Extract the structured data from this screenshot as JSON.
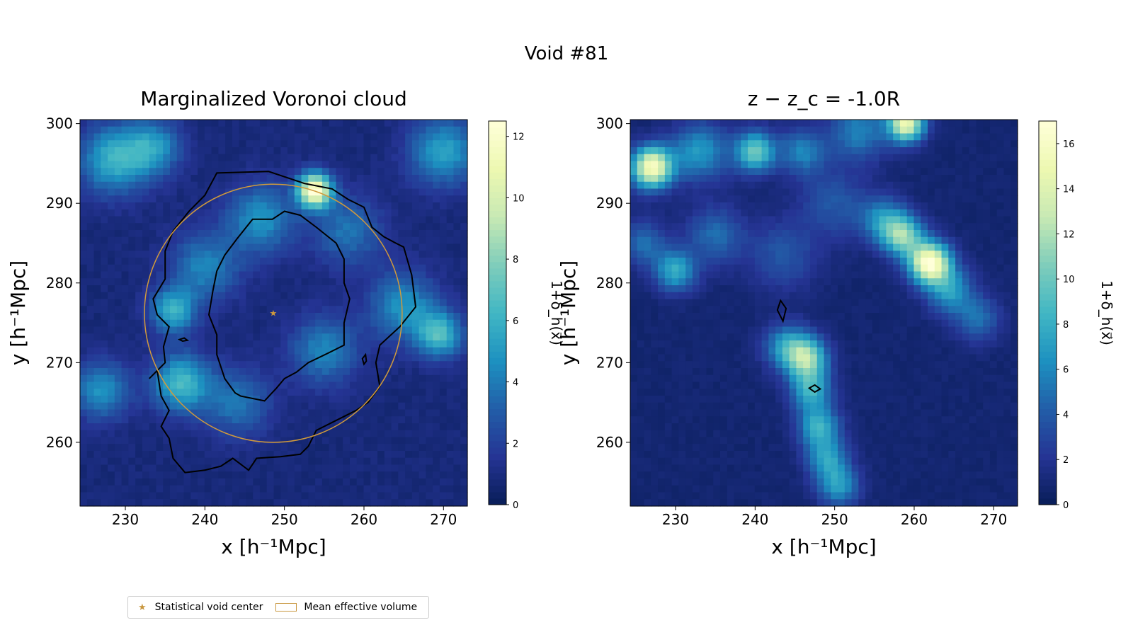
{
  "suptitle": "Void #81",
  "legend": {
    "items": [
      {
        "label": "Statistical void center",
        "marker": "star",
        "color": "#c8963e"
      },
      {
        "label": "Mean effective volume",
        "marker": "rect-outline",
        "color": "#c8963e"
      }
    ]
  },
  "colormap": "YlGnBu",
  "chart_data": [
    {
      "type": "heatmap",
      "title": "Marginalized Voronoi cloud",
      "xlabel": "x [h⁻¹Mpc]",
      "ylabel": "y [h⁻¹Mpc]",
      "xlim": [
        224.3,
        273
      ],
      "ylim": [
        252,
        300.5
      ],
      "xticks": [
        230,
        240,
        250,
        260,
        270
      ],
      "yticks": [
        260,
        270,
        280,
        290,
        300
      ],
      "colorbar": {
        "label": "1+δ_h(x⃗)",
        "min": 0,
        "max": 12.5,
        "ticks": [
          0,
          2,
          4,
          6,
          8,
          10,
          12
        ]
      },
      "density_peaks": [
        {
          "x": 253.8,
          "y": 291.6,
          "value": 11.5,
          "sigma": 1.5
        },
        {
          "x": 228.5,
          "y": 295.5,
          "value": 5,
          "sigma": 3
        },
        {
          "x": 233.5,
          "y": 297,
          "value": 4,
          "sigma": 2.5
        },
        {
          "x": 270,
          "y": 296.5,
          "value": 4.5,
          "sigma": 3
        },
        {
          "x": 247,
          "y": 288,
          "value": 4,
          "sigma": 3
        },
        {
          "x": 258,
          "y": 286.5,
          "value": 3,
          "sigma": 3
        },
        {
          "x": 240,
          "y": 282,
          "value": 3.5,
          "sigma": 3
        },
        {
          "x": 236,
          "y": 276.5,
          "value": 5,
          "sigma": 2
        },
        {
          "x": 237,
          "y": 267.5,
          "value": 5.5,
          "sigma": 2.5
        },
        {
          "x": 227,
          "y": 266.5,
          "value": 4,
          "sigma": 2.5
        },
        {
          "x": 269.5,
          "y": 273.5,
          "value": 5.5,
          "sigma": 2
        },
        {
          "x": 265,
          "y": 277,
          "value": 4,
          "sigma": 3
        },
        {
          "x": 255,
          "y": 271.5,
          "value": 3.5,
          "sigma": 3
        },
        {
          "x": 244,
          "y": 265,
          "value": 3,
          "sigma": 3
        }
      ],
      "contours": [
        [
          [
            241.5,
            293.8
          ],
          [
            248,
            294
          ],
          [
            252.5,
            292.5
          ],
          [
            256,
            291.8
          ],
          [
            258,
            290.5
          ],
          [
            260,
            289.5
          ],
          [
            261,
            287
          ],
          [
            262.5,
            285.8
          ],
          [
            264,
            285
          ],
          [
            265,
            284.5
          ],
          [
            266,
            281
          ],
          [
            266.5,
            277
          ],
          [
            264.5,
            274.5
          ],
          [
            262,
            272.2
          ],
          [
            261.5,
            270
          ],
          [
            262,
            267
          ],
          [
            260.5,
            265
          ],
          [
            259,
            264
          ],
          [
            257,
            263
          ],
          [
            254,
            261.5
          ],
          [
            253,
            259.5
          ],
          [
            252,
            258.5
          ],
          [
            249.5,
            258.2
          ],
          [
            246.5,
            258
          ],
          [
            245.5,
            256.5
          ],
          [
            243.5,
            258
          ],
          [
            242,
            257
          ],
          [
            240,
            256.5
          ],
          [
            237.5,
            256.2
          ],
          [
            236,
            258
          ],
          [
            235.5,
            260.5
          ],
          [
            234.5,
            262
          ],
          [
            235.5,
            264
          ],
          [
            234.5,
            265.8
          ],
          [
            234,
            269
          ],
          [
            233,
            268
          ],
          [
            235,
            270
          ],
          [
            234.8,
            272
          ],
          [
            235.5,
            274.5
          ],
          [
            234,
            276
          ],
          [
            233.5,
            278
          ],
          [
            235,
            280.5
          ],
          [
            235,
            284
          ],
          [
            236,
            286.5
          ],
          [
            238,
            289
          ],
          [
            240,
            291
          ],
          [
            241.5,
            293.8
          ]
        ],
        [
          [
            248.5,
            288
          ],
          [
            250,
            289
          ],
          [
            252,
            288.5
          ],
          [
            254,
            287
          ],
          [
            256.5,
            285
          ],
          [
            257.5,
            283
          ],
          [
            257.5,
            280
          ],
          [
            258.2,
            278
          ],
          [
            257.5,
            275
          ],
          [
            257.5,
            272.2
          ],
          [
            255.5,
            271.2
          ],
          [
            253,
            270
          ],
          [
            251.5,
            268.8
          ],
          [
            250,
            268
          ],
          [
            249,
            266.8
          ],
          [
            247.5,
            265.2
          ],
          [
            244.5,
            265.8
          ],
          [
            243.8,
            266.2
          ],
          [
            242.5,
            268
          ],
          [
            241.5,
            271
          ],
          [
            241.5,
            273.5
          ],
          [
            240.5,
            276
          ],
          [
            241,
            279
          ],
          [
            241.5,
            281.5
          ],
          [
            242.5,
            283.5
          ],
          [
            244,
            285.5
          ],
          [
            246,
            288
          ],
          [
            248.5,
            288
          ]
        ],
        [
          [
            236.8,
            272.9
          ],
          [
            237.4,
            273.1
          ],
          [
            237.8,
            272.8
          ],
          [
            237.2,
            272.7
          ],
          [
            236.8,
            272.9
          ]
        ],
        [
          [
            259.8,
            270.5
          ],
          [
            260.2,
            271
          ],
          [
            260.3,
            270.2
          ],
          [
            260,
            269.8
          ],
          [
            259.8,
            270.5
          ]
        ]
      ],
      "void_center": {
        "x": 248.6,
        "y": 276.2
      },
      "effective_radius": 16.2
    },
    {
      "type": "heatmap",
      "title": "z − z_c = -1.0R",
      "xlabel": "x [h⁻¹Mpc]",
      "ylabel": "y [h⁻¹Mpc]",
      "xlim": [
        224.3,
        273
      ],
      "ylim": [
        252,
        300.5
      ],
      "xticks": [
        230,
        240,
        250,
        260,
        270
      ],
      "yticks": [
        260,
        270,
        280,
        290,
        300
      ],
      "colorbar": {
        "label": "1+δ_h(x⃗)",
        "min": 0,
        "max": 17,
        "ticks": [
          0,
          2,
          4,
          6,
          8,
          10,
          12,
          14,
          16
        ]
      },
      "density_peaks": [
        {
          "x": 227,
          "y": 294.5,
          "value": 15,
          "sigma": 1.8
        },
        {
          "x": 233,
          "y": 296.5,
          "value": 6,
          "sigma": 2.5
        },
        {
          "x": 240,
          "y": 296.5,
          "value": 9,
          "sigma": 1.8
        },
        {
          "x": 246,
          "y": 296.5,
          "value": 5,
          "sigma": 2
        },
        {
          "x": 259,
          "y": 300,
          "value": 14,
          "sigma": 1.6
        },
        {
          "x": 253,
          "y": 299,
          "value": 5,
          "sigma": 2.5
        },
        {
          "x": 262,
          "y": 282.5,
          "value": 16,
          "sigma": 1.8
        },
        {
          "x": 258.5,
          "y": 286,
          "value": 10,
          "sigma": 1.8
        },
        {
          "x": 256,
          "y": 288,
          "value": 5,
          "sigma": 2
        },
        {
          "x": 264.5,
          "y": 279,
          "value": 6,
          "sigma": 2
        },
        {
          "x": 268,
          "y": 275.5,
          "value": 4,
          "sigma": 2
        },
        {
          "x": 230,
          "y": 281.5,
          "value": 7,
          "sigma": 1.8
        },
        {
          "x": 226,
          "y": 285,
          "value": 4,
          "sigma": 2
        },
        {
          "x": 235,
          "y": 286,
          "value": 4,
          "sigma": 2.5
        },
        {
          "x": 244,
          "y": 272,
          "value": 6,
          "sigma": 2
        },
        {
          "x": 246.5,
          "y": 270.5,
          "value": 10,
          "sigma": 1.8
        },
        {
          "x": 247,
          "y": 266.5,
          "value": 7,
          "sigma": 1.8
        },
        {
          "x": 248,
          "y": 262,
          "value": 7,
          "sigma": 1.8
        },
        {
          "x": 249,
          "y": 258,
          "value": 6,
          "sigma": 1.8
        },
        {
          "x": 250.5,
          "y": 254.5,
          "value": 6,
          "sigma": 1.8
        },
        {
          "x": 243.5,
          "y": 283.5,
          "value": 3,
          "sigma": 3
        },
        {
          "x": 250,
          "y": 290,
          "value": 3,
          "sigma": 3
        }
      ],
      "contours": [
        [
          [
            243.2,
            277.8
          ],
          [
            243.9,
            276.8
          ],
          [
            243.5,
            275.2
          ],
          [
            242.8,
            276.6
          ],
          [
            243.2,
            277.8
          ]
        ],
        [
          [
            246.8,
            266.8
          ],
          [
            247.5,
            267.2
          ],
          [
            248.2,
            266.7
          ],
          [
            247.5,
            266.3
          ],
          [
            246.8,
            266.8
          ]
        ]
      ]
    }
  ]
}
